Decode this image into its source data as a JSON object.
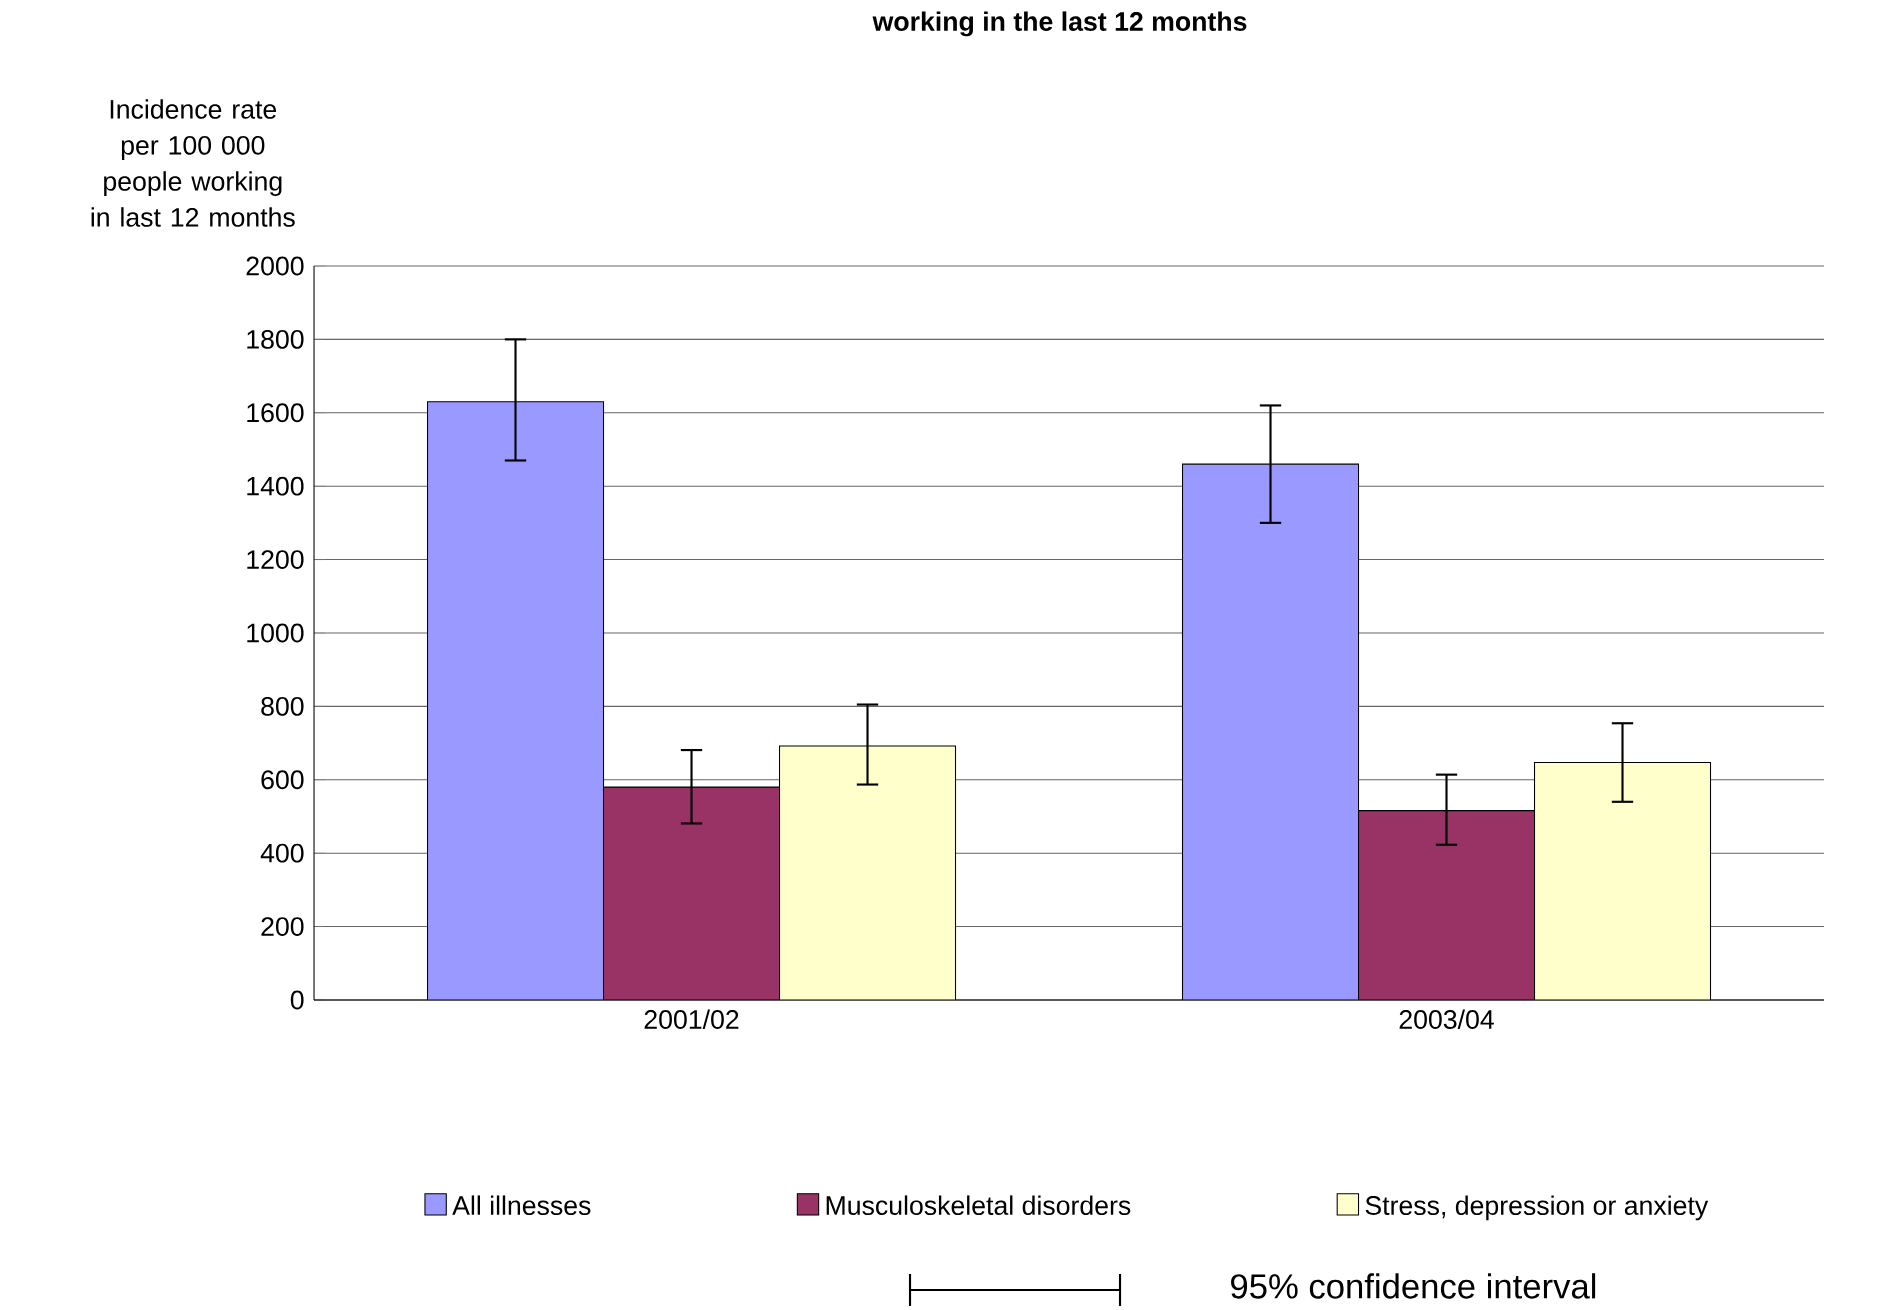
{
  "chart_data": {
    "type": "bar",
    "title": "working in the last 12 months",
    "ylabel": "Incidence rate per 100 000 people working in last 12 months",
    "categories": [
      "2001/02",
      "2003/04"
    ],
    "series": [
      {
        "name": "All illnesses",
        "color": "#9999ff",
        "values": [
          1630,
          1460
        ],
        "errors": [
          [
            1470,
            1800
          ],
          [
            1300,
            1620
          ]
        ]
      },
      {
        "name": "Musculoskeletal disorders",
        "color": "#993366",
        "values": [
          580,
          516
        ],
        "errors": [
          [
            481,
            681
          ],
          [
            423,
            614
          ]
        ]
      },
      {
        "name": "Stress, depression or anxiety",
        "color": "#ffffcc",
        "values": [
          692,
          647
        ],
        "errors": [
          [
            587,
            805
          ],
          [
            540,
            754
          ]
        ]
      }
    ],
    "ylim": [
      0,
      2000
    ],
    "yticks": [
      0,
      200,
      400,
      600,
      800,
      1000,
      1200,
      1400,
      1600,
      1800,
      2000
    ],
    "grid": "y",
    "legend": "bottom",
    "annotations": [
      "95% confidence interval"
    ]
  }
}
